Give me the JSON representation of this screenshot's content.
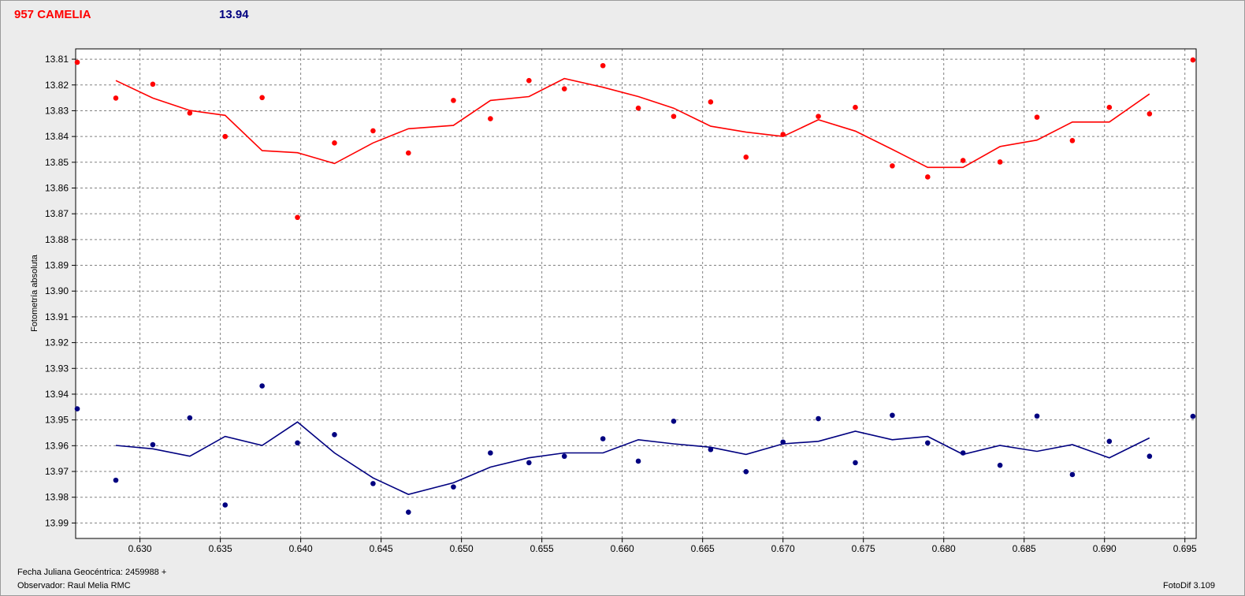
{
  "header": {
    "object_name": "957 CAMELIA",
    "magnitude": "13.94",
    "object_color": "#ff0000",
    "magnitude_color": "#000080"
  },
  "footer": {
    "jd_label": "Fecha Juliana Geocéntrica: 2459988 +",
    "observer": "Observador: Raul Melia RMC",
    "software": "FotoDif 3.109"
  },
  "chart_data": {
    "type": "scatter",
    "title": "957 CAMELIA",
    "ylabel": "Fotometría absoluta",
    "xlabel": "",
    "xlim": [
      0.626,
      0.6957
    ],
    "ylim": [
      13.996,
      13.806
    ],
    "y_inverted": true,
    "grid": true,
    "x_ticks": [
      "0.630",
      "0.635",
      "0.640",
      "0.645",
      "0.650",
      "0.655",
      "0.660",
      "0.665",
      "0.670",
      "0.675",
      "0.680",
      "0.685",
      "0.690",
      "0.695"
    ],
    "y_ticks": [
      "13.81",
      "13.82",
      "13.83",
      "13.84",
      "13.85",
      "13.86",
      "13.87",
      "13.88",
      "13.89",
      "13.90",
      "13.91",
      "13.92",
      "13.93",
      "13.94",
      "13.95",
      "13.96",
      "13.97",
      "13.98",
      "13.99"
    ],
    "series": [
      {
        "name": "957 CAMELIA",
        "color": "#ff0000",
        "points": [
          [
            0.6261,
            13.8112
          ],
          [
            0.6285,
            13.8251
          ],
          [
            0.6308,
            13.8197
          ],
          [
            0.6331,
            13.8309
          ],
          [
            0.6353,
            13.84
          ],
          [
            0.6376,
            13.8249
          ],
          [
            0.6398,
            13.8714
          ],
          [
            0.6421,
            13.8425
          ],
          [
            0.6445,
            13.8378
          ],
          [
            0.6467,
            13.8464
          ],
          [
            0.6495,
            13.826
          ],
          [
            0.6518,
            13.8331
          ],
          [
            0.6542,
            13.8183
          ],
          [
            0.6564,
            13.8215
          ],
          [
            0.6588,
            13.8125
          ],
          [
            0.661,
            13.829
          ],
          [
            0.6632,
            13.8322
          ],
          [
            0.6655,
            13.8266
          ],
          [
            0.6677,
            13.848
          ],
          [
            0.67,
            13.8392
          ],
          [
            0.6722,
            13.8322
          ],
          [
            0.6745,
            13.8287
          ],
          [
            0.6768,
            13.8514
          ],
          [
            0.679,
            13.8557
          ],
          [
            0.6812,
            13.8493
          ],
          [
            0.6835,
            13.8499
          ],
          [
            0.6858,
            13.8325
          ],
          [
            0.688,
            13.8416
          ],
          [
            0.6903,
            13.8287
          ],
          [
            0.6928,
            13.8312
          ],
          [
            0.6955,
            13.8103
          ]
        ],
        "line": [
          [
            0.6285,
            13.8183
          ],
          [
            0.6308,
            13.8251
          ],
          [
            0.6331,
            13.8299
          ],
          [
            0.6353,
            13.8318
          ],
          [
            0.6376,
            13.8455
          ],
          [
            0.6398,
            13.8463
          ],
          [
            0.6421,
            13.8505
          ],
          [
            0.6445,
            13.8425
          ],
          [
            0.6467,
            13.837
          ],
          [
            0.6495,
            13.8357
          ],
          [
            0.6518,
            13.826
          ],
          [
            0.6542,
            13.8245
          ],
          [
            0.6564,
            13.8175
          ],
          [
            0.6588,
            13.8209
          ],
          [
            0.661,
            13.8245
          ],
          [
            0.6632,
            13.829
          ],
          [
            0.6655,
            13.836
          ],
          [
            0.6677,
            13.8383
          ],
          [
            0.67,
            13.84
          ],
          [
            0.6722,
            13.8335
          ],
          [
            0.6745,
            13.8379
          ],
          [
            0.6768,
            13.845
          ],
          [
            0.679,
            13.852
          ],
          [
            0.6812,
            13.852
          ],
          [
            0.6835,
            13.8439
          ],
          [
            0.6858,
            13.8414
          ],
          [
            0.688,
            13.8344
          ],
          [
            0.6903,
            13.8344
          ],
          [
            0.6928,
            13.8235
          ]
        ]
      },
      {
        "name": "13.94",
        "color": "#000080",
        "points": [
          [
            0.6261,
            13.9457
          ],
          [
            0.6285,
            13.9734
          ],
          [
            0.6308,
            13.9596
          ],
          [
            0.6331,
            13.9492
          ],
          [
            0.6353,
            13.983
          ],
          [
            0.6376,
            13.9368
          ],
          [
            0.6398,
            13.9589
          ],
          [
            0.6421,
            13.9557
          ],
          [
            0.6445,
            13.9747
          ],
          [
            0.6467,
            13.9858
          ],
          [
            0.6495,
            13.976
          ],
          [
            0.6518,
            13.9628
          ],
          [
            0.6542,
            13.9666
          ],
          [
            0.6564,
            13.9641
          ],
          [
            0.6588,
            13.9573
          ],
          [
            0.661,
            13.966
          ],
          [
            0.6632,
            13.9505
          ],
          [
            0.6655,
            13.9615
          ],
          [
            0.6677,
            13.9701
          ],
          [
            0.67,
            13.9586
          ],
          [
            0.6722,
            13.9495
          ],
          [
            0.6745,
            13.9666
          ],
          [
            0.6768,
            13.9482
          ],
          [
            0.679,
            13.9589
          ],
          [
            0.6812,
            13.9628
          ],
          [
            0.6835,
            13.9676
          ],
          [
            0.6858,
            13.9485
          ],
          [
            0.688,
            13.9712
          ],
          [
            0.6903,
            13.9583
          ],
          [
            0.6928,
            13.9641
          ],
          [
            0.6955,
            13.9486
          ]
        ],
        "line": [
          [
            0.6285,
            13.9599
          ],
          [
            0.6308,
            13.9612
          ],
          [
            0.6331,
            13.9641
          ],
          [
            0.6353,
            13.9564
          ],
          [
            0.6376,
            13.9599
          ],
          [
            0.6398,
            13.9508
          ],
          [
            0.6421,
            13.9628
          ],
          [
            0.6445,
            13.9725
          ],
          [
            0.6467,
            13.9789
          ],
          [
            0.6495,
            13.9744
          ],
          [
            0.6518,
            13.9683
          ],
          [
            0.6542,
            13.9647
          ],
          [
            0.6564,
            13.9628
          ],
          [
            0.6588,
            13.9628
          ],
          [
            0.661,
            13.9577
          ],
          [
            0.6632,
            13.9593
          ],
          [
            0.6655,
            13.9606
          ],
          [
            0.6677,
            13.9634
          ],
          [
            0.67,
            13.9593
          ],
          [
            0.6722,
            13.9583
          ],
          [
            0.6745,
            13.9544
          ],
          [
            0.6768,
            13.9577
          ],
          [
            0.679,
            13.9564
          ],
          [
            0.6812,
            13.9634
          ],
          [
            0.6835,
            13.9599
          ],
          [
            0.6858,
            13.9622
          ],
          [
            0.688,
            13.9596
          ],
          [
            0.6903,
            13.9647
          ],
          [
            0.6928,
            13.957
          ]
        ]
      }
    ]
  }
}
